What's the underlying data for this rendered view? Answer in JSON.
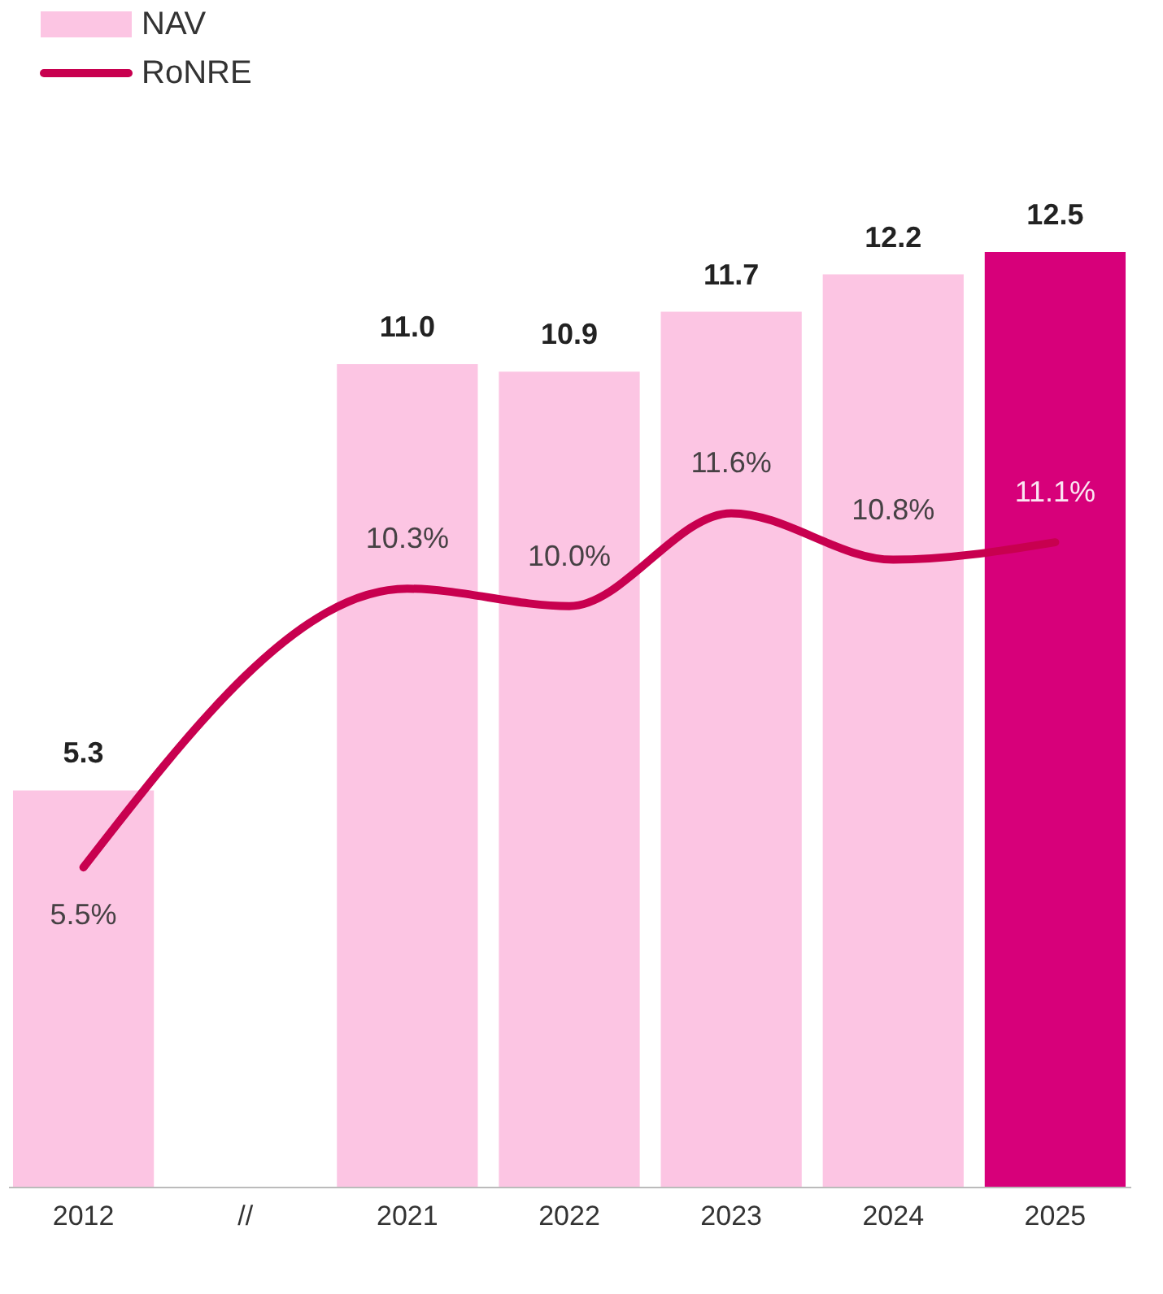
{
  "chart_data": {
    "type": "bar",
    "categories": [
      "2012",
      "//",
      "2021",
      "2022",
      "2023",
      "2024",
      "2025"
    ],
    "series": [
      {
        "name": "NAV",
        "colors": [
          "#fcc5e3",
          "#fcc5e3",
          "#fcc5e3",
          "#fcc5e3",
          "#fcc5e3",
          "#fcc5e3",
          "#d7007a"
        ],
        "color": "#fcc5e3",
        "values": [
          5.3,
          null,
          11.0,
          10.9,
          11.7,
          12.2,
          12.5
        ],
        "value_labels": [
          "5.3",
          null,
          "11.0",
          "10.9",
          "11.7",
          "12.2",
          "12.5"
        ]
      },
      {
        "name": "RoNRE",
        "type": "line",
        "axis": "y2",
        "color": "#c8004f",
        "values": [
          5.5,
          null,
          10.3,
          10.0,
          11.6,
          10.8,
          11.1
        ],
        "value_labels": [
          "5.5%",
          null,
          "10.3%",
          "10.0%",
          "11.6%",
          "10.8%",
          "11.1%"
        ]
      }
    ],
    "ylim": [
      0,
      12.5
    ],
    "y2lim": [
      0,
      16.1
    ],
    "tick_labels": "x",
    "grid": false,
    "legend": "top left"
  }
}
